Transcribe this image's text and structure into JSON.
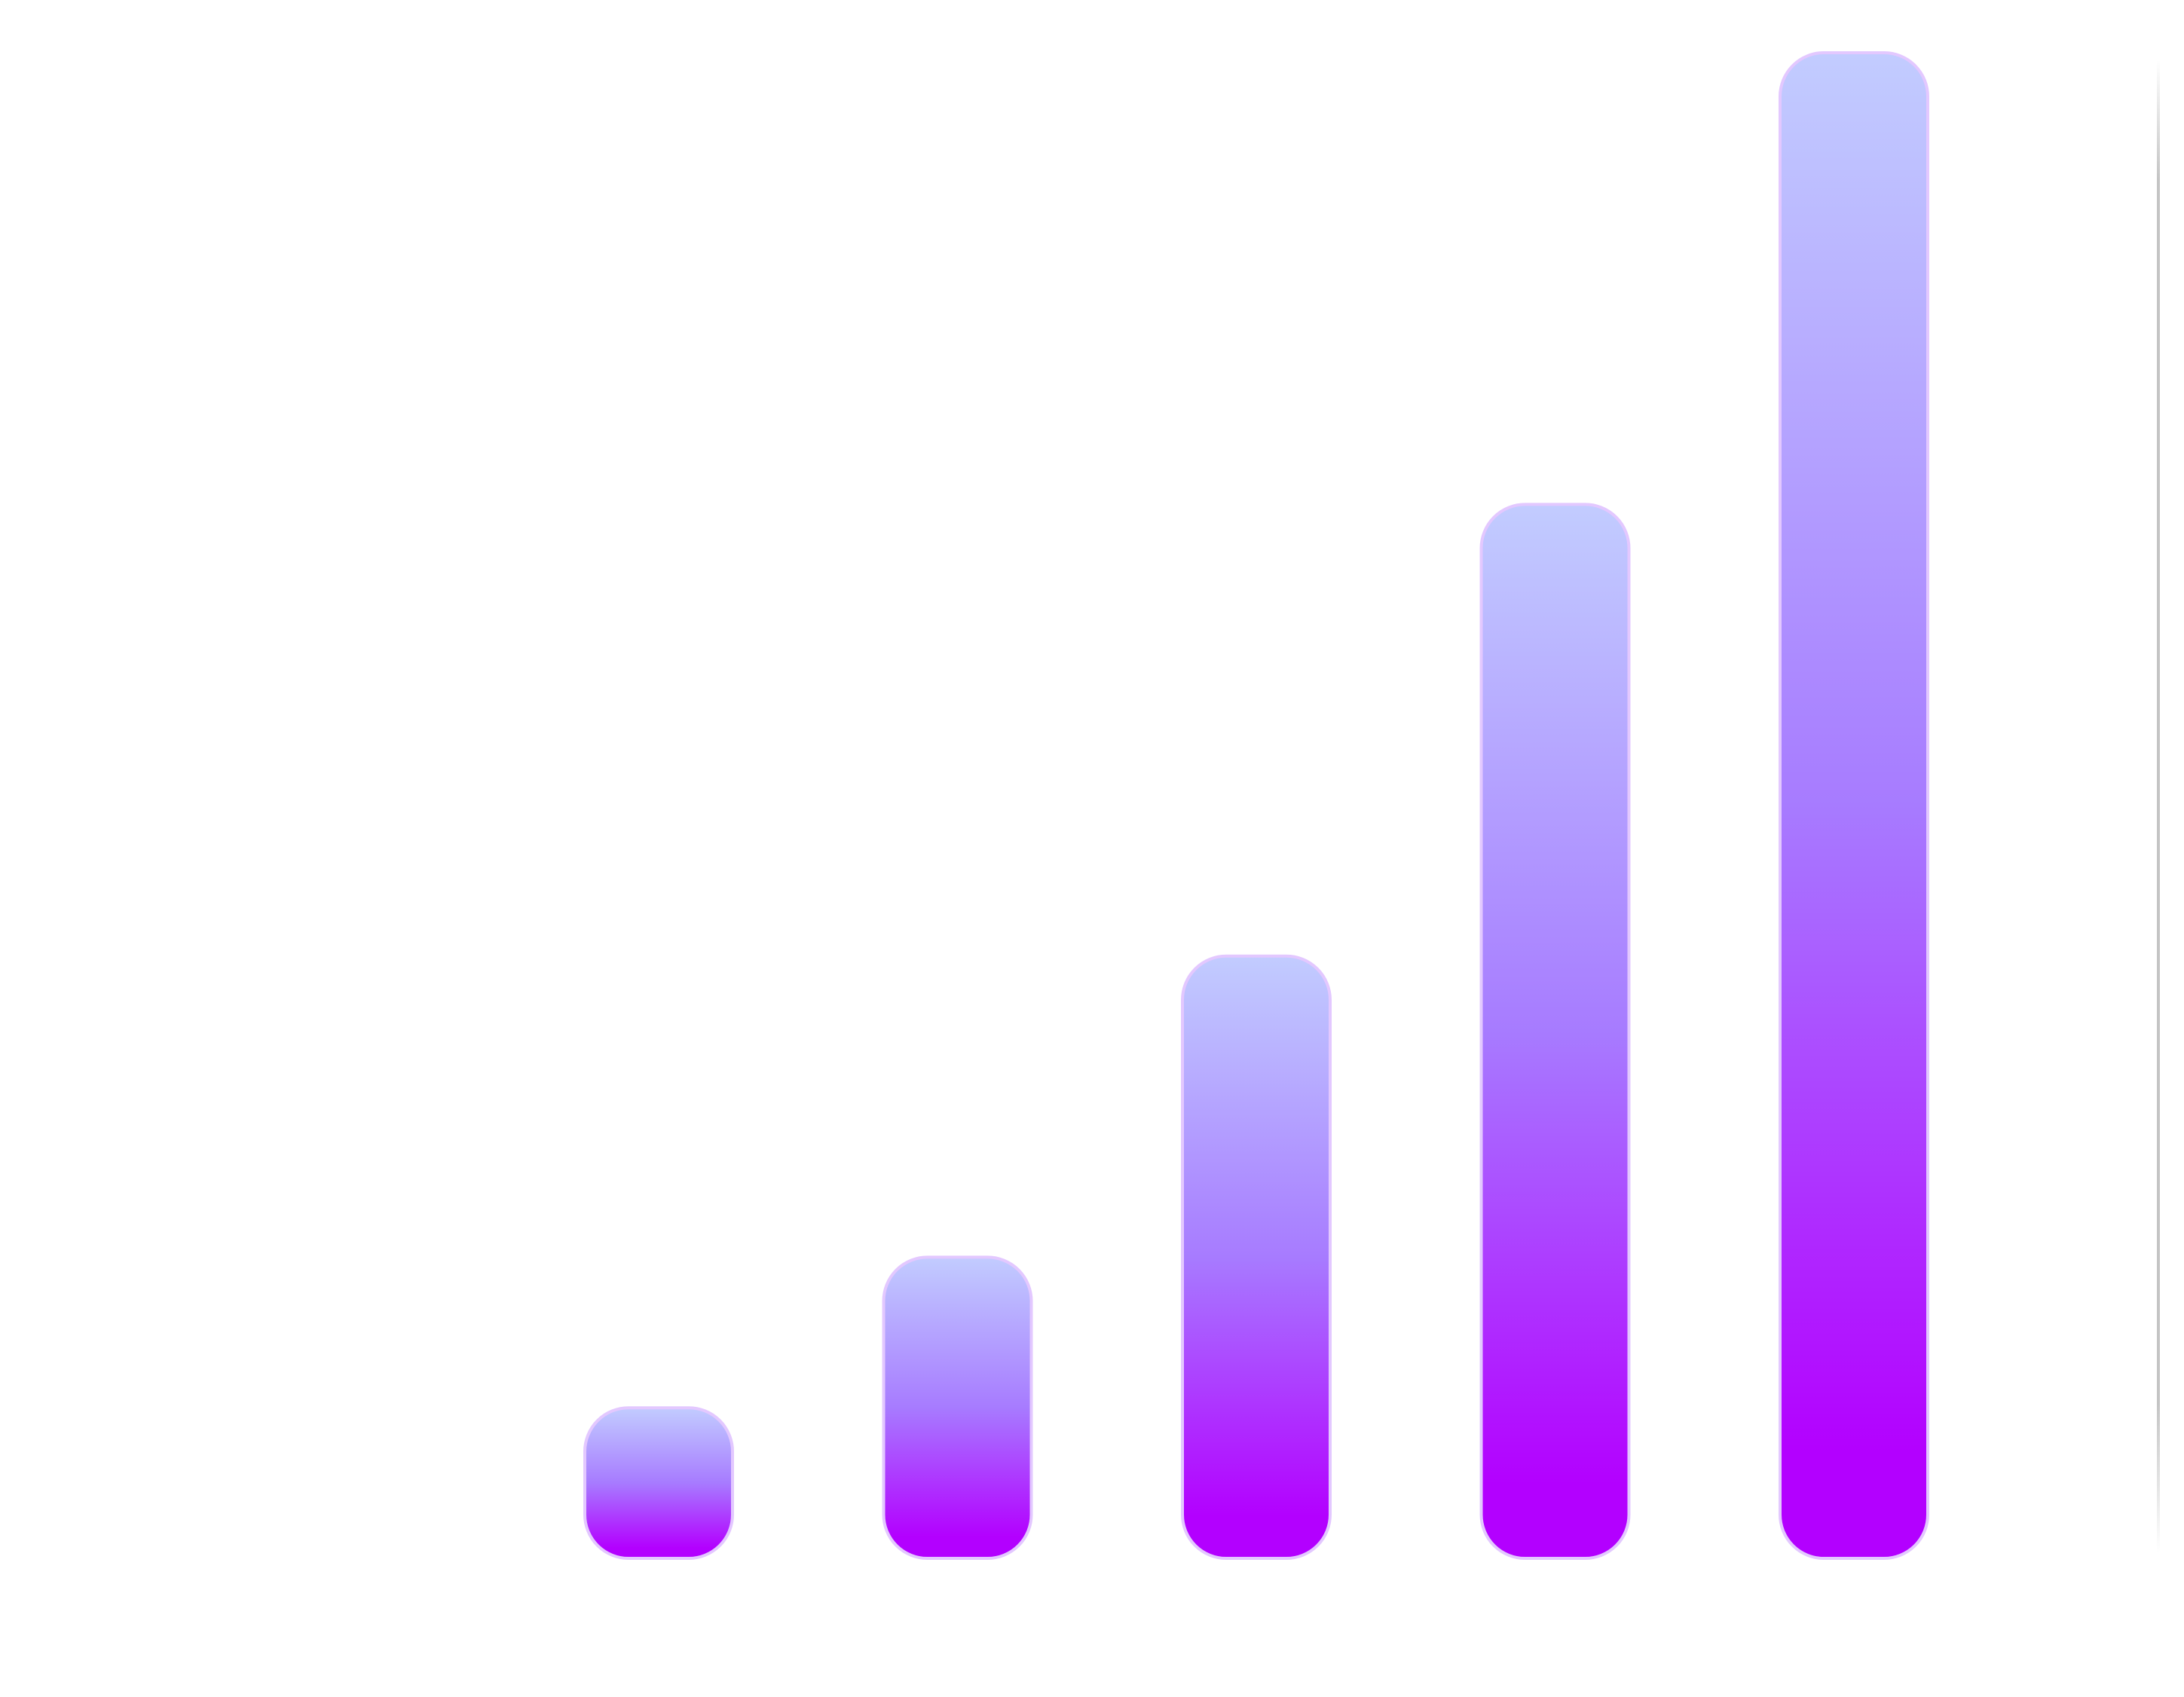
{
  "chart_data": {
    "type": "bar",
    "categories": [
      "",
      "",
      "",
      "",
      ""
    ],
    "values": [
      1,
      2,
      4,
      7,
      10
    ],
    "ylim": [
      0,
      10
    ],
    "grid": false,
    "legend": "none",
    "title": "",
    "xlabel": "",
    "ylabel": ""
  },
  "colors": {
    "bar_top": "#c2ccff",
    "bar_mid": "#a77bff",
    "bar_bottom": "#b300ff",
    "bar_edge": "#e3c8ff",
    "divider": "#c4c4c4",
    "background": "#ffffff"
  }
}
